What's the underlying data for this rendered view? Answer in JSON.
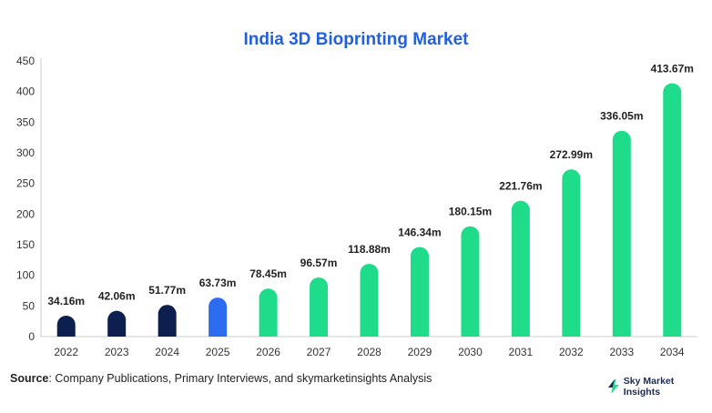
{
  "chart_data": {
    "type": "bar",
    "title": "India 3D Bioprinting Market",
    "categories": [
      "2022",
      "2023",
      "2024",
      "2025",
      "2026",
      "2027",
      "2028",
      "2029",
      "2030",
      "2031",
      "2032",
      "2033",
      "2034"
    ],
    "values": [
      34.16,
      42.06,
      51.77,
      63.73,
      78.45,
      96.57,
      118.88,
      146.34,
      180.15,
      221.76,
      272.99,
      336.05,
      413.67
    ],
    "data_labels": [
      "34.16m",
      "42.06m",
      "51.77m",
      "63.73m",
      "78.45m",
      "96.57m",
      "118.88m",
      "146.34m",
      "180.15m",
      "221.76m",
      "272.99m",
      "336.05m",
      "413.67m"
    ],
    "y_ticks": [
      0,
      50,
      100,
      150,
      200,
      250,
      300,
      350,
      400,
      450
    ],
    "ylim": [
      0,
      450
    ],
    "xlabel": "",
    "ylabel": "",
    "grid": false,
    "colors": {
      "historical": "#0c1f4f",
      "base_year": "#2d6cf0",
      "forecast": "#1fdc8b",
      "axis": "#cccccc",
      "title": "#1f5fe0"
    },
    "bar_color_groups": [
      "historical",
      "historical",
      "historical",
      "base_year",
      "forecast",
      "forecast",
      "forecast",
      "forecast",
      "forecast",
      "forecast",
      "forecast",
      "forecast",
      "forecast"
    ]
  },
  "footer": {
    "source_label": "Source",
    "source_text": ": Company Publications, Primary Interviews, and skymarketinsights Analysis",
    "brand": "Sky Market Insights",
    "brand_icon": "lightning-bolt-icon"
  }
}
